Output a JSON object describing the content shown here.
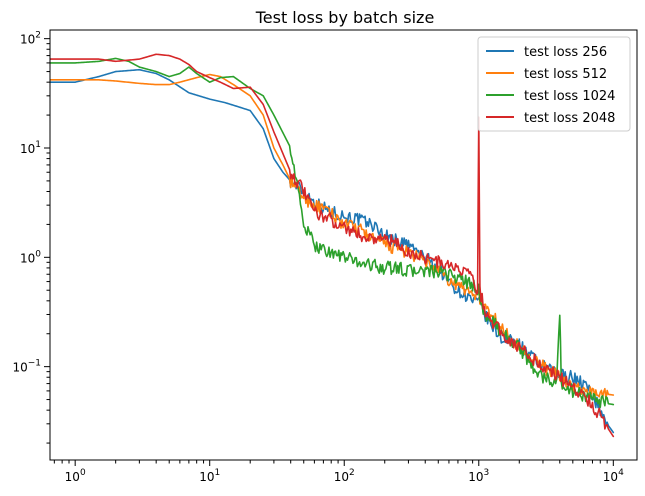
{
  "chart_data": {
    "type": "line",
    "title": "Test loss by batch size",
    "xlabel": "",
    "ylabel": "",
    "xscale": "log",
    "yscale": "log",
    "xlim": [
      0.65,
      15000
    ],
    "ylim": [
      0.014,
      120
    ],
    "grid": false,
    "legend_position": "top-right",
    "x_ticks": [
      {
        "value": 1,
        "base": "10",
        "exp": "0"
      },
      {
        "value": 10,
        "base": "10",
        "exp": "1"
      },
      {
        "value": 100,
        "base": "10",
        "exp": "2"
      },
      {
        "value": 1000,
        "base": "10",
        "exp": "3"
      },
      {
        "value": 10000,
        "base": "10",
        "exp": "4"
      }
    ],
    "y_ticks": [
      {
        "value": 0.1,
        "base": "10",
        "exp": "−1"
      },
      {
        "value": 1,
        "base": "10",
        "exp": "0"
      },
      {
        "value": 10,
        "base": "10",
        "exp": "1"
      },
      {
        "value": 100,
        "base": "10",
        "exp": "2"
      }
    ],
    "series": [
      {
        "name": "test loss 256",
        "color": "#1f77b4",
        "x": [
          0.65,
          1,
          1.5,
          2,
          3,
          4,
          5,
          7,
          10,
          13,
          16,
          20,
          25,
          30,
          35,
          40,
          50,
          60,
          80,
          100,
          130,
          160,
          200,
          250,
          300,
          400,
          500,
          600,
          700,
          800,
          900,
          1000,
          1100,
          1300,
          1500,
          2000,
          2500,
          3000,
          3500,
          4000,
          5000,
          6000,
          7000,
          8000,
          9000,
          10000
        ],
        "y": [
          40,
          40,
          45,
          50,
          52,
          48,
          42,
          32,
          28,
          26,
          24,
          22,
          15,
          8,
          6,
          5,
          4,
          3.2,
          2.6,
          2.4,
          2.2,
          2.0,
          1.6,
          1.4,
          1.3,
          1.0,
          0.8,
          0.6,
          0.5,
          0.45,
          0.4,
          0.38,
          0.3,
          0.22,
          0.18,
          0.16,
          0.12,
          0.1,
          0.09,
          0.085,
          0.08,
          0.07,
          0.055,
          0.04,
          0.03,
          0.025
        ]
      },
      {
        "name": "test loss 512",
        "color": "#ff7f0e",
        "x": [
          0.65,
          1,
          1.5,
          2,
          3,
          4,
          5,
          6,
          8,
          10,
          12,
          15,
          20,
          25,
          30,
          35,
          40,
          50,
          60,
          80,
          100,
          130,
          160,
          200,
          250,
          300,
          400,
          500,
          600,
          700,
          800,
          900,
          1000,
          1100,
          1300,
          1500,
          2000,
          2500,
          3000,
          4000,
          5000,
          6000,
          7000,
          8000,
          9000,
          10000
        ],
        "y": [
          42,
          42,
          42,
          41,
          39,
          38,
          38,
          40,
          44,
          47,
          45,
          38,
          30,
          20,
          10,
          7,
          5,
          3.5,
          3.0,
          2.5,
          2.0,
          1.8,
          1.5,
          1.3,
          1.2,
          1.1,
          0.9,
          0.75,
          0.6,
          0.55,
          0.5,
          0.48,
          0.45,
          0.35,
          0.28,
          0.22,
          0.15,
          0.12,
          0.1,
          0.08,
          0.065,
          0.06,
          0.058,
          0.057,
          0.056,
          0.055
        ]
      },
      {
        "name": "test loss 1024",
        "color": "#2ca02c",
        "x": [
          0.65,
          1,
          1.5,
          2,
          2.5,
          3,
          4,
          5,
          6,
          7,
          8,
          10,
          12,
          15,
          20,
          25,
          30,
          40,
          50,
          60,
          70,
          80,
          100,
          130,
          160,
          200,
          250,
          300,
          400,
          500,
          600,
          700,
          800,
          900,
          1000,
          1100,
          1300,
          1500,
          2000,
          2500,
          3000,
          3800,
          4000,
          4100,
          4500,
          5000,
          6000,
          7000,
          8000,
          9000,
          10000
        ],
        "y": [
          60,
          60,
          62,
          66,
          62,
          55,
          50,
          45,
          48,
          55,
          48,
          40,
          44,
          45,
          35,
          30,
          20,
          10,
          2.0,
          1.3,
          1.2,
          1.1,
          1.0,
          0.9,
          0.85,
          0.8,
          0.8,
          0.75,
          0.75,
          0.72,
          0.7,
          0.65,
          0.6,
          0.55,
          0.5,
          0.3,
          0.25,
          0.2,
          0.15,
          0.1,
          0.08,
          0.07,
          0.33,
          0.07,
          0.065,
          0.06,
          0.055,
          0.05,
          0.048,
          0.046,
          0.045
        ]
      },
      {
        "name": "test loss 2048",
        "color": "#d62728",
        "x": [
          0.65,
          1,
          1.5,
          2,
          3,
          4,
          5,
          6,
          7,
          8,
          10,
          12,
          15,
          20,
          25,
          30,
          40,
          50,
          60,
          80,
          100,
          130,
          160,
          200,
          250,
          300,
          400,
          500,
          600,
          700,
          800,
          900,
          980,
          1000,
          1020,
          1100,
          1300,
          1500,
          2000,
          2500,
          3000,
          4000,
          5000,
          6000,
          7000,
          8000,
          9000,
          10000
        ],
        "y": [
          65,
          65,
          65,
          62,
          65,
          72,
          70,
          65,
          58,
          50,
          44,
          40,
          35,
          36,
          25,
          14,
          6,
          4,
          2.6,
          2.2,
          1.9,
          1.6,
          1.5,
          1.5,
          1.3,
          1.1,
          1.0,
          0.9,
          0.85,
          0.75,
          0.8,
          0.6,
          0.5,
          21,
          0.5,
          0.33,
          0.25,
          0.2,
          0.15,
          0.12,
          0.1,
          0.08,
          0.065,
          0.055,
          0.045,
          0.035,
          0.028,
          0.023
        ]
      }
    ]
  }
}
